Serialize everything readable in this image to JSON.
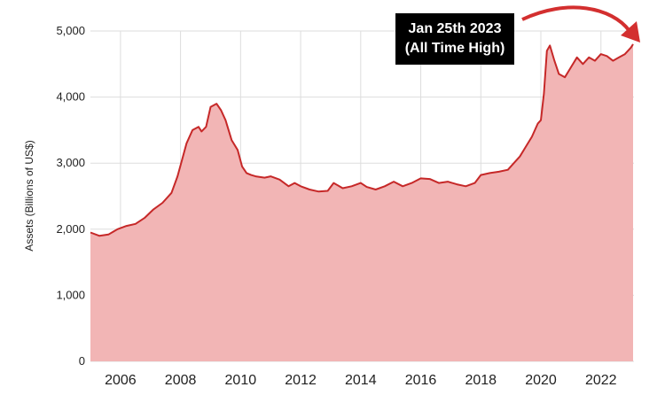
{
  "chart_data": {
    "type": "area",
    "title": "",
    "xlabel": "",
    "ylabel": "Assets (Billions of US$)",
    "ylim": [
      0,
      5000
    ],
    "xlim": [
      2005.0,
      2023.1
    ],
    "y_ticks": [
      0,
      1000,
      2000,
      3000,
      4000,
      5000
    ],
    "y_tick_labels": [
      "0",
      "1,000",
      "2,000",
      "3,000",
      "4,000",
      "5,000"
    ],
    "x_ticks": [
      2006,
      2008,
      2010,
      2012,
      2014,
      2016,
      2018,
      2020,
      2022
    ],
    "x_tick_labels": [
      "2006",
      "2008",
      "2010",
      "2012",
      "2014",
      "2016",
      "2018",
      "2020",
      "2022"
    ],
    "grid": true,
    "colors": {
      "line": "#c62828",
      "fill": "#f2b5b5",
      "grid": "#dddddd",
      "arrow": "#d32f2f"
    },
    "series": [
      {
        "x": [
          2005.0,
          2005.3,
          2005.6,
          2005.9,
          2006.2,
          2006.5,
          2006.8,
          2007.1,
          2007.4,
          2007.7,
          2007.9,
          2008.05,
          2008.2,
          2008.4,
          2008.6,
          2008.7,
          2008.85,
          2009.0,
          2009.2,
          2009.35,
          2009.5,
          2009.7,
          2009.9,
          2010.05,
          2010.2,
          2010.35,
          2010.5,
          2010.8,
          2011.0,
          2011.3,
          2011.6,
          2011.8,
          2012.0,
          2012.3,
          2012.6,
          2012.9,
          2013.1,
          2013.4,
          2013.7,
          2014.0,
          2014.2,
          2014.5,
          2014.8,
          2015.1,
          2015.4,
          2015.7,
          2016.0,
          2016.3,
          2016.6,
          2016.9,
          2017.2,
          2017.5,
          2017.8,
          2018.0,
          2018.3,
          2018.6,
          2018.9,
          2019.1,
          2019.3,
          2019.5,
          2019.7,
          2019.9,
          2020.0,
          2020.1,
          2020.2,
          2020.3,
          2020.45,
          2020.6,
          2020.8,
          2021.0,
          2021.2,
          2021.4,
          2021.6,
          2021.8,
          2022.0,
          2022.2,
          2022.4,
          2022.6,
          2022.8,
          2023.0,
          2023.07
        ],
        "values": [
          1950,
          1900,
          1920,
          2000,
          2050,
          2080,
          2170,
          2300,
          2400,
          2550,
          2800,
          3050,
          3300,
          3500,
          3550,
          3480,
          3550,
          3850,
          3900,
          3800,
          3650,
          3350,
          3200,
          2950,
          2850,
          2820,
          2800,
          2780,
          2800,
          2750,
          2650,
          2700,
          2650,
          2600,
          2570,
          2580,
          2700,
          2620,
          2650,
          2700,
          2640,
          2600,
          2650,
          2720,
          2650,
          2700,
          2770,
          2760,
          2700,
          2720,
          2680,
          2650,
          2700,
          2820,
          2850,
          2870,
          2900,
          3000,
          3100,
          3250,
          3400,
          3600,
          3650,
          4050,
          4700,
          4780,
          4550,
          4350,
          4300,
          4450,
          4600,
          4500,
          4600,
          4550,
          4650,
          4620,
          4550,
          4600,
          4650,
          4750,
          4800
        ]
      }
    ],
    "annotation": {
      "line1": "Jan 25th 2023",
      "line2": "(All Time High)"
    }
  }
}
